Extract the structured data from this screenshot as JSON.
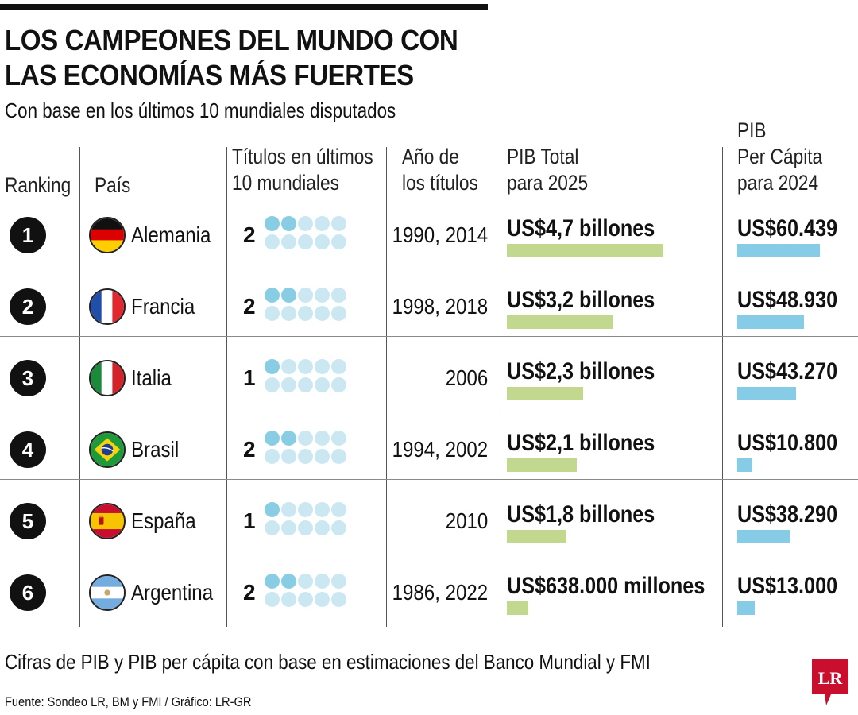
{
  "title_line1": "LOS CAMPEONES DEL MUNDO CON",
  "title_line2": "LAS ECONOMÍAS MÁS FUERTES",
  "subtitle": "Con base en los últimos 10 mundiales disputados",
  "headers": {
    "ranking": [
      "Ranking"
    ],
    "pais": [
      "País"
    ],
    "titulos": [
      "Títulos en últimos",
      "10 mundiales"
    ],
    "anio": [
      "Año de",
      "los títulos"
    ],
    "pib_total": [
      "PIB Total",
      "para 2025"
    ],
    "pib_pc": [
      "PIB",
      "Per Cápita",
      "para 2024"
    ]
  },
  "colors": {
    "dot_filled": "#89cde4",
    "dot_empty": "#cbe8f2",
    "gdp_bar": "#c2d88f",
    "pc_bar": "#86cce6",
    "logo_red": "#c8102e"
  },
  "chart_data": {
    "type": "table",
    "total_mundiales": 10,
    "rows": [
      {
        "rank": "1",
        "country": "Alemania",
        "flag": "germany-flag",
        "titles": 2,
        "years": "1990, 2014",
        "gdp_label": "US$4,7 billones",
        "gdp_value": 4.7,
        "pc_label": "US$60.439",
        "pc_value": 60439
      },
      {
        "rank": "2",
        "country": "Francia",
        "flag": "france-flag",
        "titles": 2,
        "years": "1998, 2018",
        "gdp_label": "US$3,2 billones",
        "gdp_value": 3.2,
        "pc_label": "US$48.930",
        "pc_value": 48930
      },
      {
        "rank": "3",
        "country": "Italia",
        "flag": "italy-flag",
        "titles": 1,
        "years": "2006",
        "gdp_label": "US$2,3 billones",
        "gdp_value": 2.3,
        "pc_label": "US$43.270",
        "pc_value": 43270
      },
      {
        "rank": "4",
        "country": "Brasil",
        "flag": "brazil-flag",
        "titles": 2,
        "years": "1994, 2002",
        "gdp_label": "US$2,1 billones",
        "gdp_value": 2.1,
        "pc_label": "US$10.800",
        "pc_value": 10800
      },
      {
        "rank": "5",
        "country": "España",
        "flag": "spain-flag",
        "titles": 1,
        "years": "2010",
        "gdp_label": "US$1,8 billones",
        "gdp_value": 1.8,
        "pc_label": "US$38.290",
        "pc_value": 38290
      },
      {
        "rank": "6",
        "country": "Argentina",
        "flag": "argentina-flag",
        "titles": 2,
        "years": "1986, 2022",
        "gdp_label": "US$638.000 millones",
        "gdp_value": 0.638,
        "pc_label": "US$13.000",
        "pc_value": 13000
      }
    ]
  },
  "note": "Cifras de PIB y PIB per cápita con base en estimaciones del Banco Mundial y FMI",
  "source": "Fuente: Sondeo LR, BM y FMI / Gráfico: LR-GR",
  "logo_text": "LR"
}
